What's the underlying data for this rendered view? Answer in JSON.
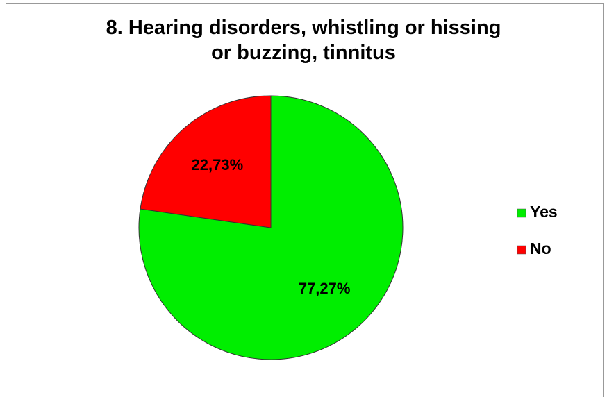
{
  "chart_data": {
    "type": "pie",
    "title": "8. Hearing disorders, whistling or hissing or buzzing, tinnitus",
    "categories": [
      "Yes",
      "No"
    ],
    "values": [
      77.27,
      22.73
    ],
    "value_labels": [
      "77,27%",
      "22,73%"
    ],
    "colors": [
      "#00ee00",
      "#ff0000"
    ],
    "legend": "right"
  }
}
